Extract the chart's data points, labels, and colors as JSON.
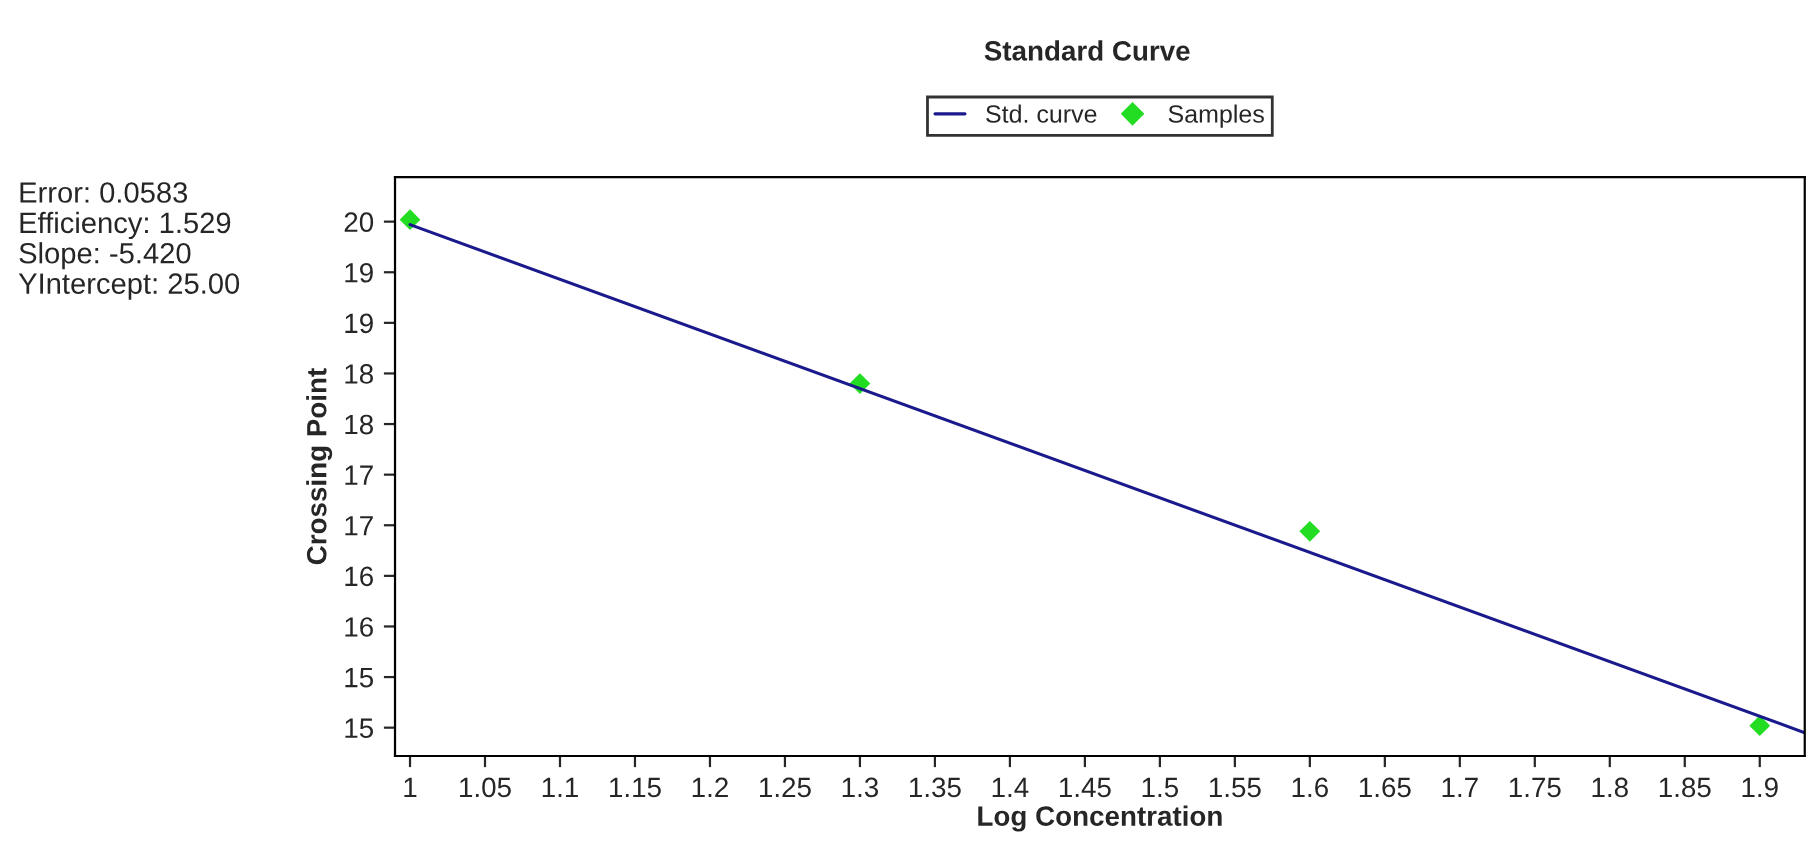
{
  "chart_data": {
    "type": "line",
    "title": "Standard Curve",
    "xlabel": "Log Concentration",
    "ylabel": "Crossing Point",
    "annotations": [
      "Error: 0.0583\nEfficiency: 1.529\nSlope: -5.420\nYIntercept: 25.00"
    ],
    "xlim": [
      0.99,
      1.93
    ],
    "ylim": [
      14.47,
      20.19
    ],
    "xticks": [
      1,
      1.05,
      1.1,
      1.15,
      1.2,
      1.25,
      1.3,
      1.35,
      1.4,
      1.45,
      1.5,
      1.55,
      1.6,
      1.65,
      1.7,
      1.75,
      1.8,
      1.85,
      1.9
    ],
    "yticks": [
      {
        "value": 19.75,
        "label": "20"
      },
      {
        "value": 19.25,
        "label": "19"
      },
      {
        "value": 18.75,
        "label": "19"
      },
      {
        "value": 18.25,
        "label": "18"
      },
      {
        "value": 17.75,
        "label": "18"
      },
      {
        "value": 17.25,
        "label": "17"
      },
      {
        "value": 16.75,
        "label": "17"
      },
      {
        "value": 16.25,
        "label": "16"
      },
      {
        "value": 15.75,
        "label": "16"
      },
      {
        "value": 15.25,
        "label": "15"
      },
      {
        "value": 14.75,
        "label": "15"
      }
    ],
    "legend": "top",
    "grid": false,
    "series": [
      {
        "name": "Std. curve",
        "marker": "none",
        "color": "#1a1a8c",
        "x": [
          1,
          1.93
        ],
        "values": [
          19.72,
          14.7
        ]
      },
      {
        "name": "Samples",
        "type": "scatter",
        "marker": "diamond",
        "color": "#22dd22",
        "x": [
          1,
          1.3,
          1.6,
          1.9
        ],
        "values": [
          19.77,
          18.15,
          16.69,
          14.77
        ]
      }
    ]
  }
}
